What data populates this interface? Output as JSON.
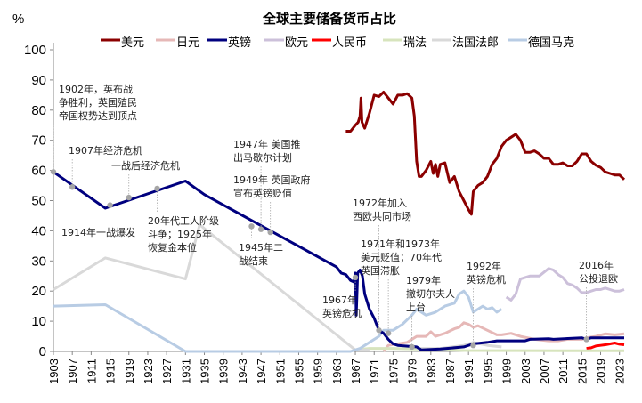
{
  "chart_data": {
    "type": "line",
    "title": "全球主要储备货币占比",
    "ylabel": "%",
    "xlabel": "",
    "xlim": [
      1903,
      2024
    ],
    "ylim": [
      0,
      100
    ],
    "yticks": [
      "0",
      "10",
      "20",
      "30",
      "40",
      "50",
      "60",
      "70",
      "80",
      "90",
      "100"
    ],
    "xticks": [
      "1903",
      "1907",
      "1911",
      "1915",
      "1919",
      "1923",
      "1927",
      "1931",
      "1935",
      "1939",
      "1943",
      "1947",
      "1951",
      "1955",
      "1959",
      "1963",
      "1967",
      "1971",
      "1975",
      "1979",
      "1983",
      "1987",
      "1991",
      "1995",
      "1999",
      "2003",
      "2007",
      "2011",
      "2015",
      "2019",
      "2023"
    ],
    "legend_position": "top",
    "grid": false,
    "series": [
      {
        "name": "美元",
        "color": "#8b0000",
        "width": 3,
        "points": [
          [
            1965,
            73
          ],
          [
            1966,
            73
          ],
          [
            1967,
            75
          ],
          [
            1967.6,
            76
          ],
          [
            1968,
            78
          ],
          [
            1968.2,
            84
          ],
          [
            1968.4,
            76
          ],
          [
            1969,
            74
          ],
          [
            1970,
            79
          ],
          [
            1971,
            85
          ],
          [
            1972,
            84.5
          ],
          [
            1973,
            86
          ],
          [
            1974,
            84
          ],
          [
            1975,
            82
          ],
          [
            1976,
            85
          ],
          [
            1977,
            85
          ],
          [
            1978,
            85.5
          ],
          [
            1979,
            84
          ],
          [
            1979.5,
            78
          ],
          [
            1980,
            63
          ],
          [
            1980.5,
            58
          ],
          [
            1981,
            58
          ],
          [
            1982,
            60
          ],
          [
            1983,
            63
          ],
          [
            1983.5,
            59
          ],
          [
            1984,
            62
          ],
          [
            1984.5,
            58
          ],
          [
            1985,
            62
          ],
          [
            1986,
            62.5
          ],
          [
            1987,
            56
          ],
          [
            1988,
            58
          ],
          [
            1989,
            53
          ],
          [
            1990,
            50
          ],
          [
            1991,
            47
          ],
          [
            1991.6,
            45.5
          ],
          [
            1992,
            53
          ],
          [
            1993,
            55
          ],
          [
            1994,
            56
          ],
          [
            1995,
            58
          ],
          [
            1996,
            62
          ],
          [
            1997,
            64
          ],
          [
            1998,
            68
          ],
          [
            1999,
            70
          ],
          [
            2000,
            71
          ],
          [
            2001,
            72
          ],
          [
            2002,
            70
          ],
          [
            2003,
            66
          ],
          [
            2004,
            66
          ],
          [
            2005,
            66.5
          ],
          [
            2006,
            65.5
          ],
          [
            2007,
            64
          ],
          [
            2008,
            64
          ],
          [
            2009,
            62
          ],
          [
            2010,
            62
          ],
          [
            2011,
            62.5
          ],
          [
            2012,
            61.5
          ],
          [
            2013,
            61.5
          ],
          [
            2014,
            63
          ],
          [
            2015,
            65.5
          ],
          [
            2016,
            65.5
          ],
          [
            2017,
            63
          ],
          [
            2018,
            61.7
          ],
          [
            2019,
            61
          ],
          [
            2020,
            59.5
          ],
          [
            2021,
            59
          ],
          [
            2022,
            58.5
          ],
          [
            2023,
            58.5
          ],
          [
            2024,
            57
          ]
        ]
      },
      {
        "name": "日元",
        "color": "#e6b8b7",
        "width": 3,
        "points": [
          [
            1973,
            0
          ],
          [
            1974,
            2
          ],
          [
            1976,
            2.5
          ],
          [
            1978,
            3
          ],
          [
            1980,
            5
          ],
          [
            1982,
            5
          ],
          [
            1983,
            6.5
          ],
          [
            1984,
            5
          ],
          [
            1986,
            6
          ],
          [
            1988,
            7.5
          ],
          [
            1989,
            8
          ],
          [
            1990,
            9.5
          ],
          [
            1991,
            9
          ],
          [
            1992,
            8
          ],
          [
            1993,
            8.5
          ],
          [
            1995,
            7
          ],
          [
            1997,
            5.5
          ],
          [
            1998,
            5.5
          ],
          [
            2000,
            6
          ],
          [
            2002,
            5
          ],
          [
            2005,
            4
          ],
          [
            2008,
            3.5
          ],
          [
            2010,
            3.5
          ],
          [
            2012,
            4
          ],
          [
            2015,
            4
          ],
          [
            2016,
            4.5
          ],
          [
            2018,
            5
          ],
          [
            2020,
            5.8
          ],
          [
            2022,
            5.5
          ],
          [
            2024,
            5.8
          ]
        ]
      },
      {
        "name": "英镑",
        "color": "#00007f",
        "width": 3,
        "points": [
          [
            1903,
            59.5
          ],
          [
            1914,
            47.5
          ],
          [
            1931,
            56.5
          ],
          [
            1935,
            52
          ],
          [
            1963,
            28
          ],
          [
            1964,
            26
          ],
          [
            1965,
            25.5
          ],
          [
            1966,
            23.5
          ],
          [
            1966.7,
            23
          ],
          [
            1967,
            26
          ],
          [
            1967.2,
            12
          ],
          [
            1967.5,
            26
          ],
          [
            1968,
            27
          ],
          [
            1968.5,
            25
          ],
          [
            1969,
            19
          ],
          [
            1970,
            14
          ],
          [
            1971,
            11
          ],
          [
            1972,
            7
          ],
          [
            1973,
            6
          ],
          [
            1974,
            4
          ],
          [
            1975,
            2.5
          ],
          [
            1976,
            2
          ],
          [
            1980,
            1.5
          ],
          [
            1981,
            0.5
          ],
          [
            1985,
            0.8
          ],
          [
            1990,
            1.5
          ],
          [
            1992,
            2.5
          ],
          [
            1995,
            3
          ],
          [
            1997,
            3.5
          ],
          [
            2003,
            3.5
          ],
          [
            2004,
            4
          ],
          [
            2008,
            4.2
          ],
          [
            2009,
            4
          ],
          [
            2015,
            4.5
          ],
          [
            2016,
            4
          ],
          [
            2017,
            4.5
          ],
          [
            2020,
            4.5
          ],
          [
            2024,
            4.5
          ]
        ]
      },
      {
        "name": "欧元",
        "color": "#ccc0da",
        "width": 3,
        "points": [
          [
            1999,
            18
          ],
          [
            2000,
            17
          ],
          [
            2001,
            19
          ],
          [
            2002,
            24
          ],
          [
            2004,
            25
          ],
          [
            2006,
            25
          ],
          [
            2008,
            27.5
          ],
          [
            2009,
            27
          ],
          [
            2010,
            25.5
          ],
          [
            2011,
            24.5
          ],
          [
            2012,
            22.5
          ],
          [
            2013,
            22
          ],
          [
            2014,
            21
          ],
          [
            2015,
            19.5
          ],
          [
            2016,
            19.5
          ],
          [
            2017,
            20
          ],
          [
            2018,
            20.5
          ],
          [
            2019,
            20.5
          ],
          [
            2020,
            21
          ],
          [
            2021,
            20.5
          ],
          [
            2022,
            20
          ],
          [
            2023,
            20
          ],
          [
            2024,
            20.5
          ]
        ]
      },
      {
        "name": "人民币",
        "color": "#ff0000",
        "width": 3,
        "points": [
          [
            2016,
            1
          ],
          [
            2017,
            1.2
          ],
          [
            2018,
            1.8
          ],
          [
            2019,
            2
          ],
          [
            2020,
            2.2
          ],
          [
            2021,
            2.5
          ],
          [
            2022,
            2.8
          ],
          [
            2023,
            2.4
          ],
          [
            2024,
            2.2
          ]
        ]
      },
      {
        "name": "瑞法",
        "color": "#d7e4bd",
        "width": 3,
        "points": [
          [
            1967,
            0.5
          ],
          [
            1970,
            1
          ],
          [
            1975,
            1
          ],
          [
            1980,
            0.8
          ],
          [
            1985,
            0.5
          ],
          [
            1990,
            0.3
          ],
          [
            2024,
            0.2
          ]
        ]
      },
      {
        "name": "法国法郎",
        "color": "#d9d9d9",
        "width": 3,
        "points": [
          [
            1903,
            20.5
          ],
          [
            1914,
            31
          ],
          [
            1931,
            24
          ],
          [
            1934,
            42
          ],
          [
            1967,
            0.5
          ],
          [
            1970,
            0.5
          ],
          null,
          [
            1980,
            1
          ],
          [
            1985,
            1
          ],
          [
            1990,
            2
          ],
          [
            1992,
            3
          ],
          [
            1995,
            2
          ],
          [
            1998,
            1.5
          ]
        ]
      },
      {
        "name": "德国马克",
        "color": "#b8cce4",
        "width": 3,
        "points": [
          [
            1903,
            15
          ],
          [
            1914,
            15.5
          ],
          [
            1931,
            0
          ],
          [
            1966,
            0
          ],
          [
            1968,
            1
          ],
          [
            1970,
            3
          ],
          [
            1972,
            5
          ],
          [
            1973,
            7
          ],
          [
            1975,
            7
          ],
          [
            1977,
            9
          ],
          [
            1979,
            12
          ],
          [
            1980,
            14
          ],
          [
            1982,
            12
          ],
          [
            1984,
            13
          ],
          [
            1986,
            15
          ],
          [
            1988,
            16
          ],
          [
            1989,
            19
          ],
          [
            1990,
            20
          ],
          [
            1991,
            18
          ],
          [
            1992,
            13
          ],
          [
            1994,
            15
          ],
          [
            1995,
            14
          ],
          [
            1996,
            14.5
          ],
          [
            1997,
            13
          ],
          [
            1998,
            14
          ]
        ]
      }
    ],
    "annotations": [
      {
        "year": 1903,
        "value": 59.5,
        "lines": [
          "1902年，英布战",
          "争胜利，英国殖民",
          "帝国权势达到顶点"
        ]
      },
      {
        "year": 1907,
        "value": 54.5,
        "lines": [
          "1907年经济危机"
        ]
      },
      {
        "year": 1919,
        "value": 51,
        "lines": [
          "一战后经济危机"
        ]
      },
      {
        "year": 1915,
        "value": 48.5,
        "lines": [
          "1914年一战爆发"
        ]
      },
      {
        "year": 1925,
        "value": 54,
        "lines": [
          "20年代工人阶级",
          "斗争；1925年",
          "恢复金本位"
        ]
      },
      {
        "year": 1947,
        "value": 40.5,
        "lines": [
          "1947年 美国推",
          "出马歇尔计划"
        ]
      },
      {
        "year": 1949,
        "value": 39.5,
        "lines": [
          "1949年 英国政府",
          "宣布英镑贬值"
        ]
      },
      {
        "year": 1945,
        "value": 41.5,
        "lines": [
          "1945年二",
          "战结束"
        ]
      },
      {
        "year": 1967,
        "value": 24.5,
        "lines": [
          "1967年",
          "英镑危机"
        ]
      },
      {
        "year": 1972,
        "value": 7,
        "lines": [
          "1972年加入",
          "西欧共同市场"
        ]
      },
      {
        "year": 1974,
        "value": 6,
        "lines": [
          "1971年和1973年",
          "美元贬值；70年代",
          "英国滞胀"
        ]
      },
      {
        "year": 1979,
        "value": 1.5,
        "lines": [
          "1979年",
          "撤切尔夫人",
          "上台"
        ]
      },
      {
        "year": 1992,
        "value": 2,
        "lines": [
          "1992年",
          "英镑危机"
        ]
      },
      {
        "year": 2016,
        "value": 4,
        "lines": [
          "2016年",
          "公投退欧"
        ]
      }
    ]
  }
}
